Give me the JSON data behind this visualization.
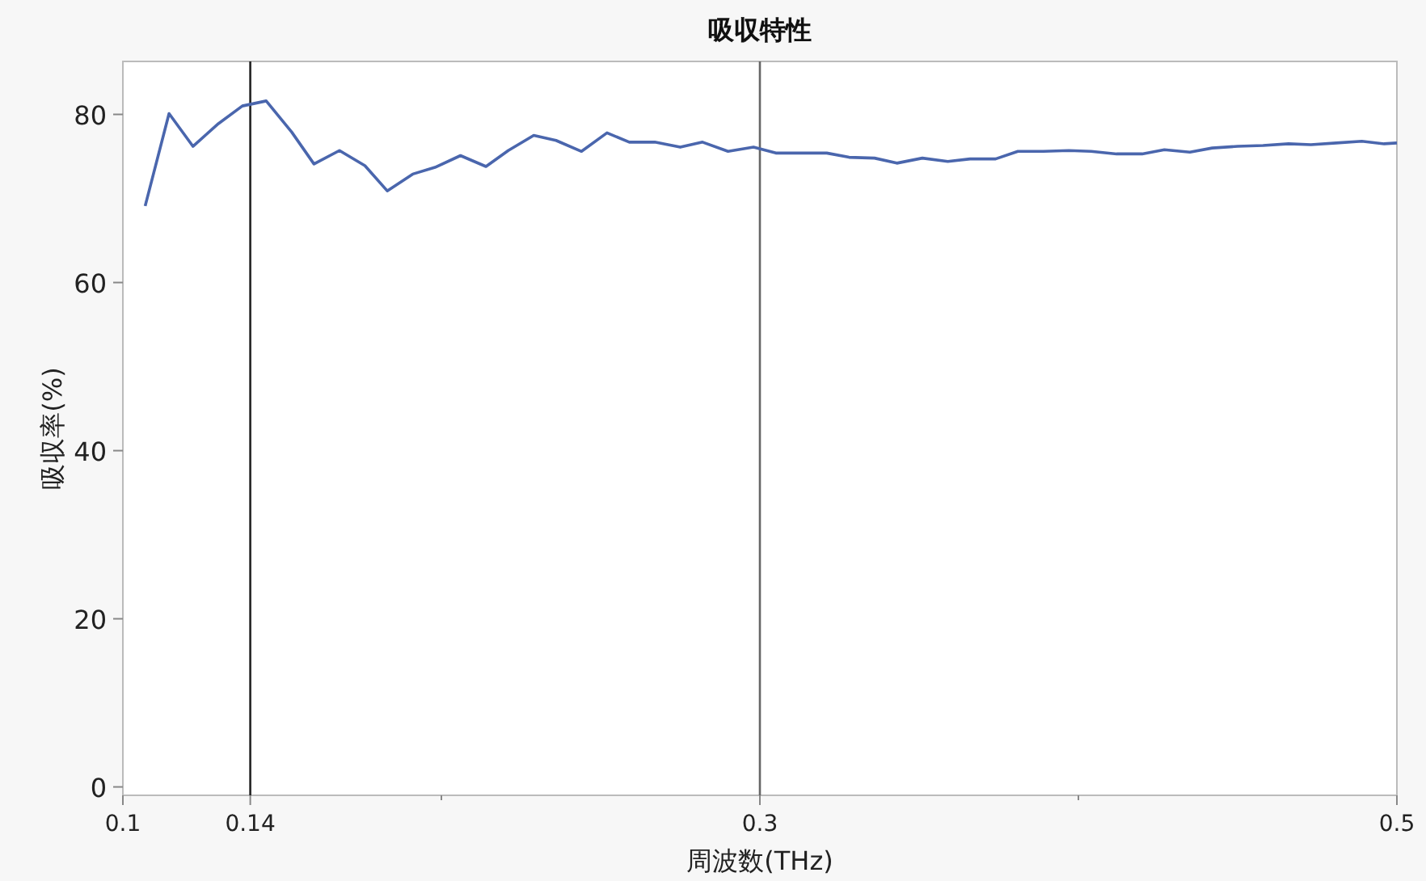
{
  "chart_data": {
    "type": "line",
    "title": "吸収特性",
    "xlabel": "周波数(THz)",
    "ylabel": "吸収率(%)",
    "xlim": [
      0.1,
      0.5
    ],
    "ylim": [
      -1,
      86.3
    ],
    "xticks": [
      0.1,
      0.14,
      {
        "value": 0.2,
        "label": null
      },
      0.3,
      {
        "value": 0.4,
        "label": null
      },
      0.5
    ],
    "yticks": [
      0,
      20,
      40,
      60,
      80
    ],
    "grid": false,
    "marker": "none",
    "line_style": "solid",
    "ref_lines": [
      {
        "axis": "x",
        "value": 0.14,
        "color": "#222222"
      },
      {
        "axis": "x",
        "value": 0.3,
        "color": "#666666"
      }
    ],
    "series": [
      {
        "color": "#4a66ad",
        "x": [
          0.107,
          0.1145,
          0.122,
          0.13,
          0.1375,
          0.145,
          0.153,
          0.16,
          0.168,
          0.176,
          0.183,
          0.191,
          0.198,
          0.206,
          0.214,
          0.221,
          0.229,
          0.236,
          0.244,
          0.252,
          0.259,
          0.267,
          0.275,
          0.282,
          0.29,
          0.298,
          0.305,
          0.313,
          0.321,
          0.328,
          0.336,
          0.343,
          0.351,
          0.359,
          0.366,
          0.374,
          0.381,
          0.389,
          0.397,
          0.404,
          0.412,
          0.42,
          0.427,
          0.435,
          0.442,
          0.45,
          0.458,
          0.466,
          0.473,
          0.481,
          0.489,
          0.496,
          0.5
        ],
        "values": [
          69.1,
          80.1,
          76.2,
          78.9,
          81.0,
          81.6,
          77.9,
          74.1,
          75.7,
          73.9,
          70.9,
          72.9,
          73.7,
          75.1,
          73.8,
          75.7,
          77.5,
          76.9,
          75.6,
          77.8,
          76.7,
          76.7,
          76.1,
          76.7,
          75.6,
          76.1,
          75.4,
          75.4,
          75.4,
          74.9,
          74.8,
          74.2,
          74.8,
          74.4,
          74.7,
          74.7,
          75.6,
          75.6,
          75.7,
          75.6,
          75.3,
          75.3,
          75.8,
          75.5,
          76.0,
          76.2,
          76.3,
          76.5,
          76.4,
          76.6,
          76.8,
          76.5,
          76.6
        ]
      }
    ]
  }
}
